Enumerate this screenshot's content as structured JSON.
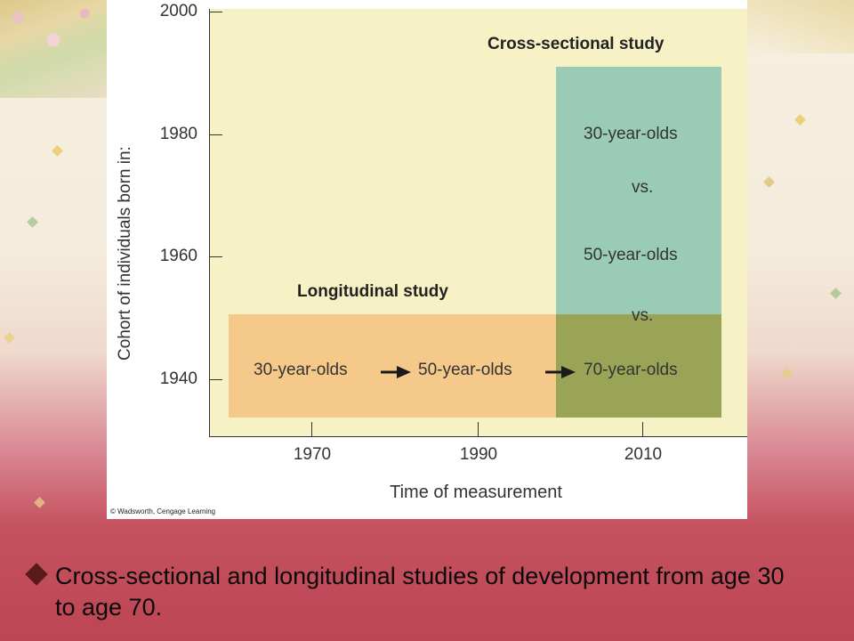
{
  "figure": {
    "y_axis_title": "Cohort of individuals born in:",
    "x_axis_title": "Time of measurement",
    "y_ticks": [
      "2000",
      "1980",
      "1960",
      "1940"
    ],
    "x_ticks": [
      "1970",
      "1990",
      "2010"
    ],
    "credit": "© Wadsworth, Cengage Learning",
    "cross_sectional": {
      "title": "Cross-sectional study",
      "group_a": "30-year-olds",
      "vs_1": "vs.",
      "group_b": "50-year-olds",
      "vs_2": "vs.",
      "group_c": "70-year-olds",
      "color": "#99cbb7"
    },
    "longitudinal": {
      "title": "Longitudinal study",
      "stage_1": "30-year-olds",
      "stage_2": "50-year-olds",
      "color": "#f5c98a"
    },
    "overlap_color": "#9aa457",
    "plot_background": "#f7f2c6"
  },
  "caption": {
    "bullet_icon": "diamond-bullet-icon",
    "text": "Cross-sectional and longitudinal studies of development from age 30 to age 70."
  }
}
